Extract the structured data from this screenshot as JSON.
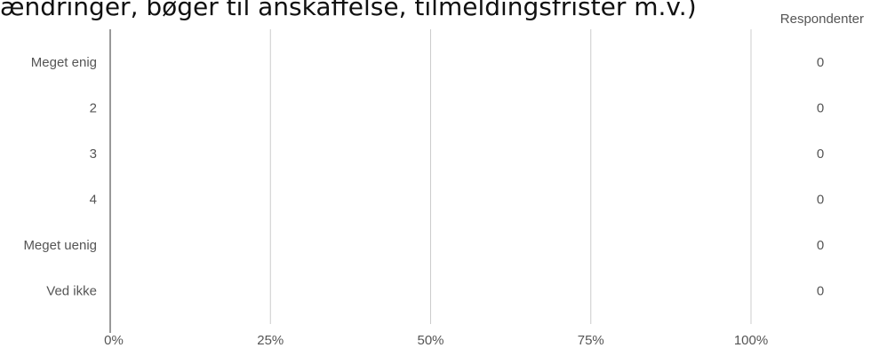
{
  "chart_data": {
    "type": "bar",
    "orientation": "horizontal",
    "title": "ændringer, bøger til anskaffelse, tilmeldingsfrister m.v.)",
    "categories": [
      "Meget enig",
      "2",
      "3",
      "4",
      "Meget uenig",
      "Ved ikke"
    ],
    "values": [
      0,
      0,
      0,
      0,
      0,
      0
    ],
    "respondents": [
      0,
      0,
      0,
      0,
      0,
      0
    ],
    "respondents_header": "Respondenter",
    "xlim": [
      0,
      100
    ],
    "xticks": [
      "0%",
      "25%",
      "50%",
      "75%",
      "100%"
    ],
    "xtick_values": [
      0,
      25,
      50,
      75,
      100
    ],
    "grid": true,
    "colors": {
      "bar": "#4c7fd1",
      "grid": "#cccccc",
      "axis": "#999999"
    }
  }
}
